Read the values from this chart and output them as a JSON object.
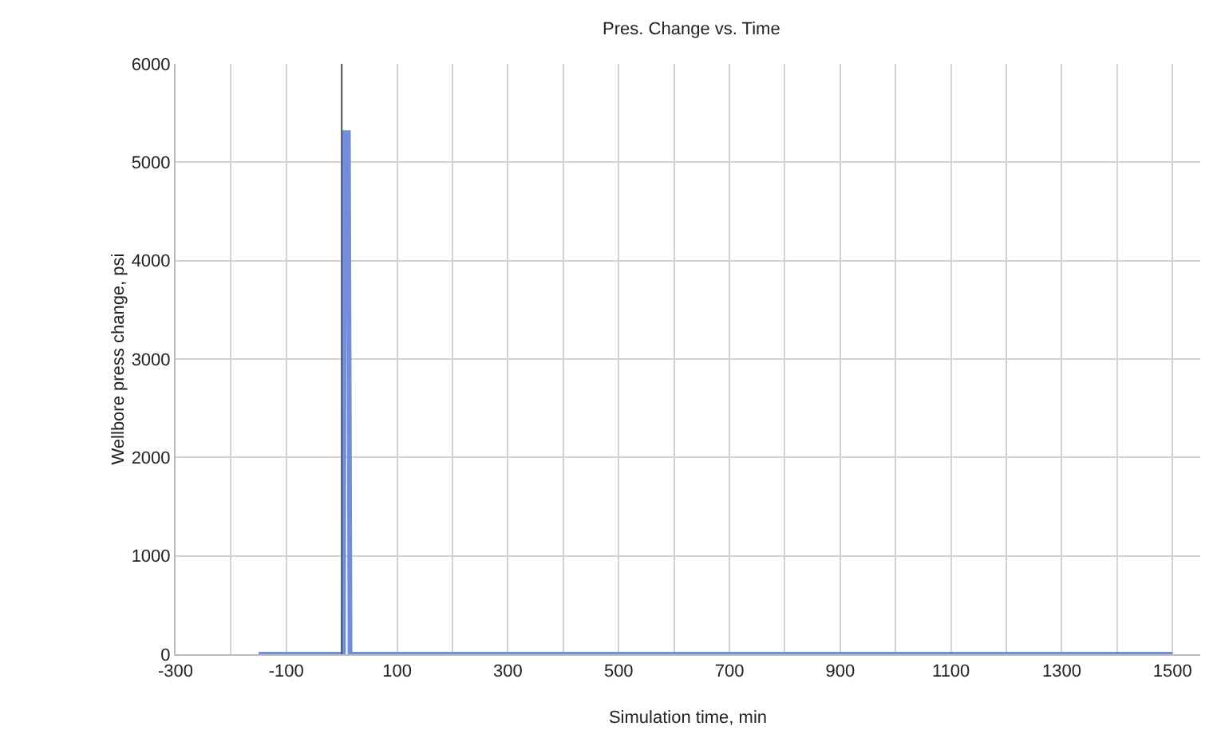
{
  "chart_data": {
    "type": "line",
    "title": "Pres. Change vs. Time",
    "xlabel": "Simulation time, min",
    "ylabel": "Wellbore press change, psi",
    "x": [
      -150,
      3,
      5,
      12,
      15,
      1500
    ],
    "series": [
      {
        "color": "#6f8fdc",
        "values": [
          0,
          0,
          5300,
          5300,
          0,
          0
        ]
      }
    ],
    "xlim": [
      -300,
      1550
    ],
    "xticks": [
      -300,
      {
        "value": -200,
        "label": null
      },
      -100,
      {
        "value": 0,
        "label": null
      },
      100,
      {
        "value": 200,
        "label": null
      },
      300,
      {
        "value": 400,
        "label": null
      },
      500,
      {
        "value": 600,
        "label": null
      },
      700,
      {
        "value": 800,
        "label": null
      },
      900,
      {
        "value": 1000,
        "label": null
      },
      1100,
      {
        "value": 1200,
        "label": null
      },
      1300,
      {
        "value": 1400,
        "label": null
      },
      1500
    ],
    "ylim": [
      0,
      6000
    ],
    "yticks": [
      0,
      1000,
      2000,
      3000,
      4000,
      5000,
      6000
    ],
    "ref_lines": [
      {
        "axis": "x",
        "value": 0,
        "color": "#555555"
      }
    ],
    "grid": true,
    "marker": "none",
    "line_style": "solid"
  }
}
